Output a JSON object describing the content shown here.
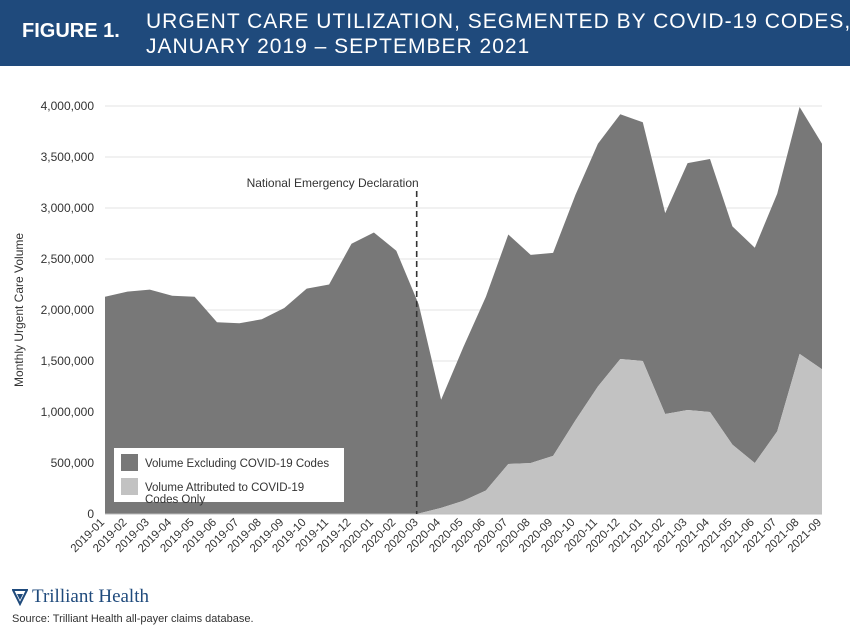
{
  "header": {
    "figure_label": "FIGURE 1.",
    "title_line1": "URGENT CARE UTILIZATION, SEGMENTED BY COVID-19 CODES,",
    "title_line2": "JANUARY 2019 – SEPTEMBER 2021",
    "background_color": "#1f4a7c"
  },
  "footer": {
    "logo_text": "Trilliant Health",
    "source": "Source: Trilliant Health all-payer claims database."
  },
  "chart_data": {
    "type": "area",
    "stacked": true,
    "ylabel": "Monthly Urgent Care Volume",
    "ylim": [
      0,
      4000000
    ],
    "yticks": [
      0,
      500000,
      1000000,
      1500000,
      2000000,
      2500000,
      3000000,
      3500000,
      4000000
    ],
    "ytick_labels": [
      "0",
      "500,000",
      "1,000,000",
      "1,500,000",
      "2,000,000",
      "2,500,000",
      "3,000,000",
      "3,500,000",
      "4,000,000"
    ],
    "categories": [
      "2019-01",
      "2019-02",
      "2019-03",
      "2019-04",
      "2019-05",
      "2019-06",
      "2019-07",
      "2019-08",
      "2019-09",
      "2019-10",
      "2019-11",
      "2019-12",
      "2020-01",
      "2020-02",
      "2020-03",
      "2020-04",
      "2020-05",
      "2020-06",
      "2020-07",
      "2020-08",
      "2020-09",
      "2020-10",
      "2020-11",
      "2020-12",
      "2021-01",
      "2021-02",
      "2021-03",
      "2021-04",
      "2021-05",
      "2021-06",
      "2021-07",
      "2021-08",
      "2021-09"
    ],
    "series": [
      {
        "name": "Volume Attributed to COVID-19 Codes Only",
        "color": "#c2c2c2",
        "values": [
          0,
          0,
          0,
          0,
          0,
          0,
          0,
          0,
          0,
          0,
          0,
          0,
          0,
          0,
          5000,
          60000,
          130000,
          230000,
          490000,
          500000,
          570000,
          920000,
          1250000,
          1520000,
          1500000,
          980000,
          1020000,
          1000000,
          680000,
          500000,
          810000,
          1570000,
          1420000
        ]
      },
      {
        "name": "Volume Excluding COVID-19 Codes",
        "color": "#787878",
        "values": [
          2130000,
          2180000,
          2200000,
          2140000,
          2130000,
          1880000,
          1870000,
          1910000,
          2020000,
          2210000,
          2250000,
          2650000,
          2760000,
          2580000,
          2050000,
          1060000,
          1510000,
          1900000,
          2250000,
          2040000,
          1990000,
          2210000,
          2380000,
          2400000,
          2340000,
          1970000,
          2420000,
          2480000,
          2140000,
          2110000,
          2330000,
          2420000,
          2210000
        ]
      }
    ],
    "legend": {
      "position": "bottom-left",
      "entries": [
        {
          "label_lines": [
            "Volume Excluding COVID-19 Codes"
          ],
          "color": "#787878"
        },
        {
          "label_lines": [
            "Volume Attributed to COVID-19",
            "Codes Only"
          ],
          "color": "#c2c2c2"
        }
      ]
    },
    "annotation": {
      "text": "National Emergency Declaration",
      "at_category": "2020-03",
      "style": "dashed-vertical-line"
    }
  }
}
